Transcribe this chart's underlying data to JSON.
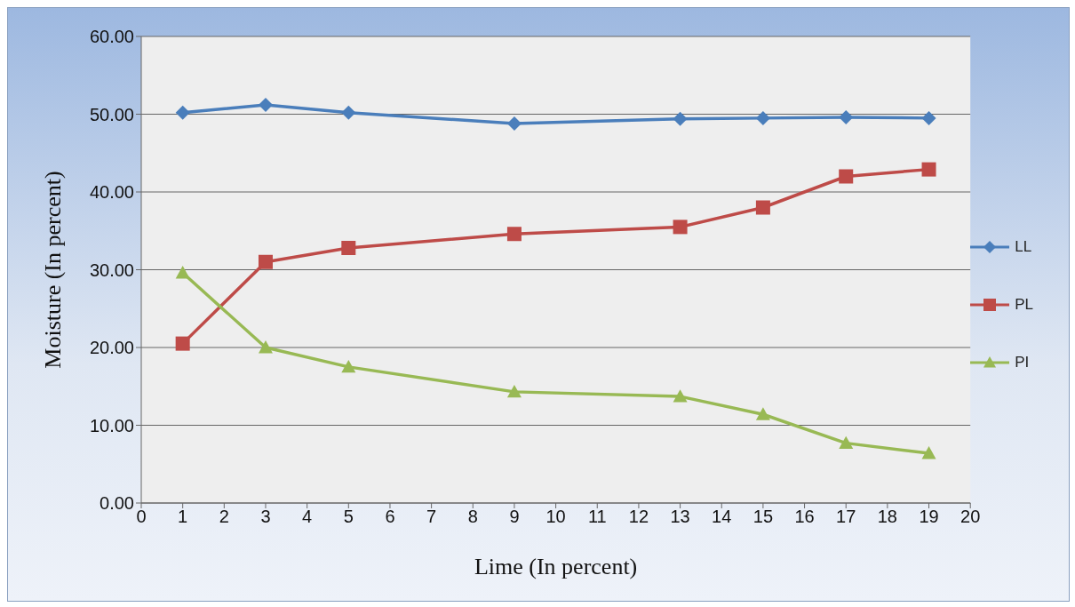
{
  "chart_data": {
    "type": "line",
    "xlabel": "Lime (In percent)",
    "ylabel": "Moisture (In percent)",
    "x": [
      1,
      3,
      5,
      9,
      13,
      15,
      17,
      19
    ],
    "series": [
      {
        "name": "LL",
        "color": "#4a7ebb",
        "marker": "diamond",
        "values": [
          50.2,
          51.2,
          50.2,
          48.8,
          49.4,
          49.5,
          49.6,
          49.5
        ]
      },
      {
        "name": "PL",
        "color": "#be4b48",
        "marker": "square",
        "values": [
          20.5,
          31.0,
          32.8,
          34.6,
          35.5,
          38.0,
          42.0,
          42.9
        ]
      },
      {
        "name": "PI",
        "color": "#98b954",
        "marker": "triangle",
        "values": [
          29.6,
          20.0,
          17.5,
          14.3,
          13.7,
          11.4,
          7.7,
          6.4
        ]
      }
    ],
    "xlim": [
      0,
      20
    ],
    "xticks": [
      0,
      1,
      2,
      3,
      4,
      5,
      6,
      7,
      8,
      9,
      10,
      11,
      12,
      13,
      14,
      15,
      16,
      17,
      18,
      19,
      20
    ],
    "ylim": [
      0,
      60
    ],
    "yticks": [
      {
        "value": 0,
        "label": "0.00"
      },
      {
        "value": 10,
        "label": "10.00"
      },
      {
        "value": 20,
        "label": "20.00"
      },
      {
        "value": 30,
        "label": "30.00"
      },
      {
        "value": 40,
        "label": "40.00"
      },
      {
        "value": 50,
        "label": "50.00"
      },
      {
        "value": 60,
        "label": "60.00"
      }
    ],
    "grid": "y",
    "legend": "right",
    "line_style": "solid"
  }
}
